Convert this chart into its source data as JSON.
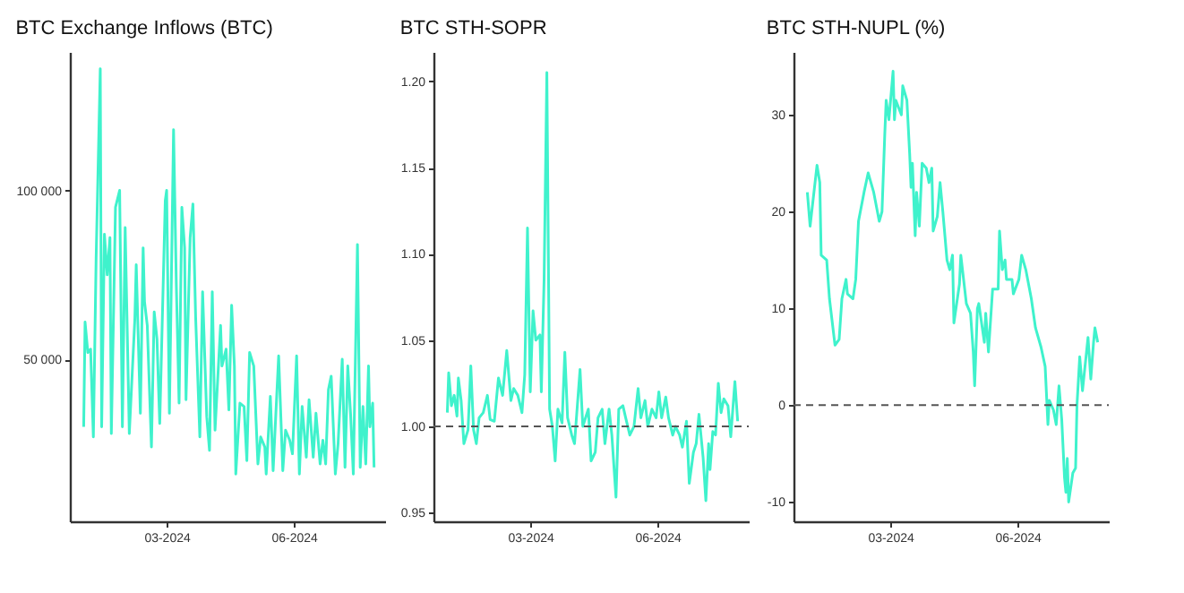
{
  "chart_data": [
    {
      "type": "line",
      "title": "BTC Exchange Inflows (BTC)",
      "xlim": [
        "2023-12-22",
        "2024-08-06"
      ],
      "xticks": [
        {
          "value": "2024-03-01",
          "label": "03-2024"
        },
        {
          "value": "2024-06-01",
          "label": "06-2024"
        }
      ],
      "ylim": [
        2000,
        141000
      ],
      "yticks": [
        {
          "value": 50000,
          "label": "50 000"
        },
        {
          "value": 100000,
          "label": "100 000"
        }
      ],
      "grid": false,
      "legend": false,
      "x": [
        "2024-01-01",
        "2024-01-02",
        "2024-01-04",
        "2024-01-06",
        "2024-01-08",
        "2024-01-10",
        "2024-01-13",
        "2024-01-14",
        "2024-01-16",
        "2024-01-18",
        "2024-01-20",
        "2024-01-21",
        "2024-01-24",
        "2024-01-27",
        "2024-01-29",
        "2024-01-31",
        "2024-02-03",
        "2024-02-07",
        "2024-02-08",
        "2024-02-11",
        "2024-02-13",
        "2024-02-14",
        "2024-02-16",
        "2024-02-19",
        "2024-02-21",
        "2024-02-23",
        "2024-02-25",
        "2024-02-29",
        "2024-03-01",
        "2024-03-03",
        "2024-03-06",
        "2024-03-08",
        "2024-03-10",
        "2024-03-12",
        "2024-03-14",
        "2024-03-15",
        "2024-03-18",
        "2024-03-20",
        "2024-03-22",
        "2024-03-25",
        "2024-03-27",
        "2024-03-30",
        "2024-04-01",
        "2024-04-03",
        "2024-04-05",
        "2024-04-09",
        "2024-04-10",
        "2024-04-13",
        "2024-04-15",
        "2024-04-17",
        "2024-04-19",
        "2024-04-20",
        "2024-04-23",
        "2024-04-26",
        "2024-04-28",
        "2024-04-30",
        "2024-05-03",
        "2024-05-06",
        "2024-05-08",
        "2024-05-11",
        "2024-05-12",
        "2024-05-15",
        "2024-05-17",
        "2024-05-21",
        "2024-05-24",
        "2024-05-26",
        "2024-05-29",
        "2024-05-31",
        "2024-06-03",
        "2024-06-05",
        "2024-06-07",
        "2024-06-10",
        "2024-06-12",
        "2024-06-15",
        "2024-06-17",
        "2024-06-20",
        "2024-06-22",
        "2024-06-24",
        "2024-06-26",
        "2024-06-28",
        "2024-07-01",
        "2024-07-03",
        "2024-07-06",
        "2024-07-08",
        "2024-07-10",
        "2024-07-12",
        "2024-07-14",
        "2024-07-17",
        "2024-07-19",
        "2024-07-21",
        "2024-07-23",
        "2024-07-25",
        "2024-07-26",
        "2024-07-28",
        "2024-07-29"
      ],
      "series": [
        {
          "color": "#3ff2cc",
          "values": [
            30000,
            61000,
            52000,
            53000,
            27000,
            80000,
            136000,
            30000,
            87000,
            75000,
            86000,
            28000,
            95000,
            100000,
            30000,
            89000,
            28000,
            62000,
            78000,
            34000,
            83000,
            67000,
            60000,
            24000,
            64000,
            56000,
            31000,
            97000,
            100000,
            34000,
            118000,
            72000,
            37000,
            95000,
            83000,
            38000,
            86000,
            96000,
            62000,
            27000,
            70000,
            33000,
            23000,
            70000,
            29000,
            60000,
            48000,
            53000,
            35000,
            66000,
            48000,
            16000,
            37000,
            36000,
            20000,
            52000,
            48000,
            19000,
            27000,
            24000,
            16000,
            39000,
            17000,
            51000,
            17000,
            29000,
            26000,
            22000,
            51000,
            16000,
            36000,
            21000,
            38000,
            21000,
            34000,
            19000,
            26000,
            19000,
            41000,
            45000,
            16000,
            25000,
            50000,
            18000,
            48000,
            34000,
            16000,
            84000,
            18000,
            36000,
            19000,
            48000,
            30000,
            37000,
            18000
          ]
        }
      ]
    },
    {
      "type": "line",
      "title": "BTC STH-SOPR",
      "xlim": [
        "2023-12-22",
        "2024-08-06"
      ],
      "xticks": [
        {
          "value": "2024-03-01",
          "label": "03-2024"
        },
        {
          "value": "2024-06-01",
          "label": "06-2024"
        }
      ],
      "ylim": [
        0.945,
        1.217
      ],
      "yticks": [
        {
          "value": 0.95,
          "label": "0.95"
        },
        {
          "value": 1,
          "label": "1.00"
        },
        {
          "value": 1.05,
          "label": "1.05"
        },
        {
          "value": 1.1,
          "label": "1.10"
        },
        {
          "value": 1.15,
          "label": "1.15"
        },
        {
          "value": 1.2,
          "label": "1.20"
        }
      ],
      "grid": false,
      "legend": false,
      "ref_lines": [
        {
          "axis": "y",
          "value": 1,
          "color": "#555555",
          "line_style": "dashed"
        }
      ],
      "x": [
        "2024-01-01",
        "2024-01-02",
        "2024-01-04",
        "2024-01-06",
        "2024-01-08",
        "2024-01-09",
        "2024-01-11",
        "2024-01-13",
        "2024-01-16",
        "2024-01-18",
        "2024-01-20",
        "2024-01-22",
        "2024-01-24",
        "2024-01-27",
        "2024-01-30",
        "2024-02-01",
        "2024-02-04",
        "2024-02-07",
        "2024-02-10",
        "2024-02-13",
        "2024-02-16",
        "2024-02-18",
        "2024-02-21",
        "2024-02-24",
        "2024-02-26",
        "2024-02-28",
        "2024-03-01",
        "2024-03-03",
        "2024-03-05",
        "2024-03-08",
        "2024-03-09",
        "2024-03-11",
        "2024-03-13",
        "2024-03-15",
        "2024-03-17",
        "2024-03-19",
        "2024-03-21",
        "2024-03-24",
        "2024-03-26",
        "2024-03-28",
        "2024-03-31",
        "2024-04-02",
        "2024-04-06",
        "2024-04-08",
        "2024-04-12",
        "2024-04-14",
        "2024-04-17",
        "2024-04-19",
        "2024-04-22",
        "2024-04-24",
        "2024-04-27",
        "2024-04-29",
        "2024-05-02",
        "2024-05-04",
        "2024-05-07",
        "2024-05-09",
        "2024-05-12",
        "2024-05-15",
        "2024-05-18",
        "2024-05-20",
        "2024-05-23",
        "2024-05-25",
        "2024-05-28",
        "2024-05-31",
        "2024-06-02",
        "2024-06-04",
        "2024-06-07",
        "2024-06-09",
        "2024-06-12",
        "2024-06-14",
        "2024-06-17",
        "2024-06-19",
        "2024-06-22",
        "2024-06-24",
        "2024-06-27",
        "2024-06-29",
        "2024-07-01",
        "2024-07-04",
        "2024-07-06",
        "2024-07-08",
        "2024-07-09",
        "2024-07-11",
        "2024-07-13",
        "2024-07-15",
        "2024-07-17",
        "2024-07-19",
        "2024-07-22",
        "2024-07-24",
        "2024-07-27",
        "2024-07-29"
      ],
      "series": [
        {
          "color": "#3ff2cc",
          "values": [
            1.008,
            1.031,
            1.012,
            1.018,
            1.006,
            1.028,
            1.015,
            0.99,
            0.998,
            1.035,
            0.998,
            0.99,
            1.005,
            1.008,
            1.018,
            1.004,
            1.003,
            1.028,
            1.018,
            1.044,
            1.015,
            1.022,
            1.018,
            1.008,
            1.03,
            1.115,
            1.02,
            1.067,
            1.05,
            1.053,
            1.02,
            1.085,
            1.205,
            1.01,
            1.0,
            0.98,
            1.01,
            1.002,
            1.043,
            1.005,
            0.995,
            0.99,
            1.033,
            1.0,
            1.01,
            0.98,
            0.985,
            1.005,
            1.01,
            0.99,
            1.01,
            0.995,
            0.959,
            1.01,
            1.012,
            1.005,
            0.995,
            1.0,
            1.022,
            1.005,
            1.015,
            1.0,
            1.01,
            1.005,
            1.02,
            1.005,
            1.017,
            1.005,
            0.995,
            1.0,
            0.995,
            0.988,
            1.003,
            0.967,
            0.985,
            0.99,
            1.007,
            0.982,
            0.957,
            0.99,
            0.975,
            0.997,
            0.995,
            1.025,
            1.008,
            1.016,
            1.012,
            0.994,
            1.026,
            1.003
          ]
        }
      ]
    },
    {
      "type": "line",
      "title": "BTC STH-NUPL (%)",
      "xlim": [
        "2023-12-22",
        "2024-08-06"
      ],
      "xticks": [
        {
          "value": "2024-03-01",
          "label": "03-2024"
        },
        {
          "value": "2024-06-01",
          "label": "06-2024"
        }
      ],
      "ylim": [
        -12,
        36.5
      ],
      "yticks": [
        -10,
        0,
        10,
        20,
        30
      ],
      "grid": false,
      "legend": false,
      "ref_lines": [
        {
          "axis": "y",
          "value": 0,
          "color": "#555555",
          "line_style": "dashed"
        }
      ],
      "x": [
        "2024-01-01",
        "2024-01-03",
        "2024-01-08",
        "2024-01-10",
        "2024-01-11",
        "2024-01-15",
        "2024-01-17",
        "2024-01-21",
        "2024-01-24",
        "2024-01-26",
        "2024-01-29",
        "2024-01-30",
        "2024-02-03",
        "2024-02-05",
        "2024-02-07",
        "2024-02-11",
        "2024-02-14",
        "2024-02-18",
        "2024-02-22",
        "2024-02-24",
        "2024-02-26",
        "2024-02-27",
        "2024-02-29",
        "2024-03-03",
        "2024-03-04",
        "2024-03-05",
        "2024-03-09",
        "2024-03-10",
        "2024-03-13",
        "2024-03-15",
        "2024-03-16",
        "2024-03-17",
        "2024-03-19",
        "2024-03-20",
        "2024-03-22",
        "2024-03-24",
        "2024-03-27",
        "2024-03-29",
        "2024-03-31",
        "2024-04-01",
        "2024-04-04",
        "2024-04-06",
        "2024-04-08",
        "2024-04-11",
        "2024-04-13",
        "2024-04-15",
        "2024-04-16",
        "2024-04-20",
        "2024-04-21",
        "2024-04-25",
        "2024-04-28",
        "2024-04-30",
        "2024-05-01",
        "2024-05-03",
        "2024-05-04",
        "2024-05-08",
        "2024-05-09",
        "2024-05-11",
        "2024-05-14",
        "2024-05-18",
        "2024-05-19",
        "2024-05-21",
        "2024-05-23",
        "2024-05-24",
        "2024-05-28",
        "2024-05-29",
        "2024-06-02",
        "2024-06-04",
        "2024-06-07",
        "2024-06-11",
        "2024-06-14",
        "2024-06-18",
        "2024-06-21",
        "2024-06-23",
        "2024-06-24",
        "2024-06-27",
        "2024-06-29",
        "2024-07-01",
        "2024-07-03",
        "2024-07-05",
        "2024-07-06",
        "2024-07-07",
        "2024-07-08",
        "2024-07-11",
        "2024-07-13",
        "2024-07-14",
        "2024-07-16",
        "2024-07-18",
        "2024-07-22",
        "2024-07-24",
        "2024-07-26",
        "2024-07-27",
        "2024-07-29"
      ],
      "series": [
        {
          "color": "#3ff2cc",
          "values": [
            22,
            18.5,
            24.8,
            23,
            15.5,
            15,
            11,
            6.2,
            6.8,
            11,
            13,
            11.5,
            11,
            13,
            19,
            22,
            24,
            22,
            19,
            20,
            28,
            31.5,
            29.5,
            34.5,
            29.5,
            31.5,
            30,
            33,
            31.5,
            26,
            22.5,
            25,
            17.5,
            22,
            18.5,
            25,
            24.5,
            23,
            24.5,
            18,
            19.5,
            23,
            20,
            15,
            14,
            15.5,
            8.5,
            12.5,
            15.5,
            10.5,
            9.5,
            5.5,
            2,
            10,
            10.5,
            6.5,
            9.5,
            5.5,
            12,
            12,
            18,
            14,
            15,
            13,
            13,
            11.5,
            13,
            15.5,
            14,
            11,
            8,
            6,
            4,
            -2,
            0.5,
            -0.5,
            -2,
            2,
            -1.5,
            -7.5,
            -9,
            -5.5,
            -10,
            -7,
            -6.5,
            0,
            5,
            1.5,
            7,
            2.7,
            6.5,
            8,
            6.5
          ]
        }
      ]
    }
  ]
}
